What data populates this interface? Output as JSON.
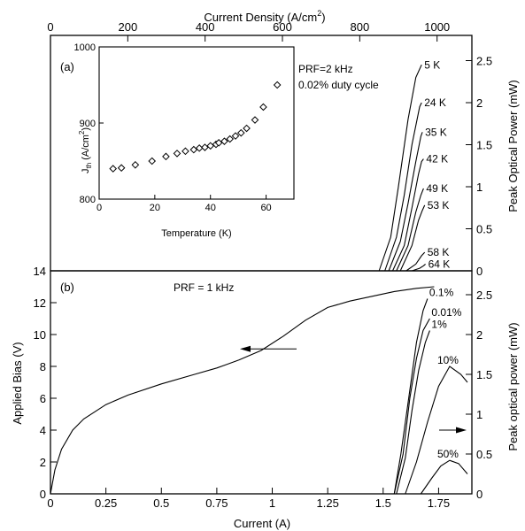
{
  "chart_data": [
    {
      "panel": "(a)",
      "type": "line",
      "xlabel_top": "Current Density (A/cm²)",
      "xlabel_top_parts": {
        "main": "Current Density (A/cm",
        "sup": "2",
        "close": ")"
      },
      "xlim_top": [
        0,
        1090
      ],
      "xticks_top": [
        0,
        200,
        400,
        600,
        800,
        1000
      ],
      "ylabel_right": "Peak Optical Power (mW)",
      "ylim_right": [
        0,
        2.8
      ],
      "yticks_right": [
        0,
        0.5,
        1,
        1.5,
        2,
        2.5
      ],
      "annotation": [
        "PRF=2 kHz",
        "0.02% duty cycle"
      ],
      "series": [
        {
          "name": "5 K",
          "x": [
            850,
            880,
            900,
            925,
            945,
            960
          ],
          "y": [
            0,
            0.4,
            1.0,
            1.8,
            2.3,
            2.45
          ]
        },
        {
          "name": "24 K",
          "x": [
            865,
            895,
            915,
            935,
            955,
            960
          ],
          "y": [
            0,
            0.4,
            0.9,
            1.5,
            1.95,
            2.0
          ]
        },
        {
          "name": "35 K",
          "x": [
            875,
            905,
            925,
            945,
            958,
            962
          ],
          "y": [
            0,
            0.35,
            0.8,
            1.3,
            1.6,
            1.65
          ]
        },
        {
          "name": "42 K",
          "x": [
            885,
            915,
            935,
            952,
            960,
            965
          ],
          "y": [
            0,
            0.3,
            0.75,
            1.15,
            1.3,
            1.33
          ]
        },
        {
          "name": "49 K",
          "x": [
            895,
            925,
            945,
            958,
            965
          ],
          "y": [
            0,
            0.3,
            0.7,
            0.9,
            0.98
          ]
        },
        {
          "name": "53 K",
          "x": [
            905,
            935,
            952,
            962,
            968
          ],
          "y": [
            0,
            0.3,
            0.6,
            0.72,
            0.78
          ]
        },
        {
          "name": "58 K",
          "x": [
            920,
            945,
            960,
            968
          ],
          "y": [
            0,
            0.08,
            0.18,
            0.22
          ]
        },
        {
          "name": "64 K",
          "x": [
            935,
            955,
            965,
            970
          ],
          "y": [
            0,
            0.03,
            0.06,
            0.08
          ]
        }
      ]
    },
    {
      "panel": "inset",
      "type": "scatter",
      "xlabel": "Temperature (K)",
      "ylabel": "J_th (A/cm²)",
      "ylabel_parts": {
        "main": "J",
        "sub": "th",
        "rest": " (A/cm",
        "sup": "2",
        "close": ")"
      },
      "xlim": [
        0,
        70
      ],
      "ylim": [
        800,
        1000
      ],
      "xticks": [
        0,
        20,
        40,
        60
      ],
      "yticks": [
        800,
        900,
        1000
      ],
      "x": [
        5,
        8,
        13,
        19,
        24,
        28,
        31,
        34,
        36,
        38,
        40,
        42,
        43,
        45,
        47,
        49,
        51,
        53,
        56,
        59,
        64
      ],
      "y": [
        840,
        841,
        845,
        850,
        856,
        860,
        863,
        865,
        867,
        868,
        870,
        872,
        874,
        876,
        879,
        883,
        887,
        893,
        904,
        921,
        950
      ]
    },
    {
      "panel": "(b)",
      "type": "line",
      "xlabel": "Current (A)",
      "xlim": [
        0,
        1.9
      ],
      "xticks": [
        0,
        0.25,
        0.5,
        0.75,
        1,
        1.25,
        1.5,
        1.75
      ],
      "xtick_labels": [
        "0",
        "0.25",
        "0.5",
        "0.75",
        "1",
        "1.25",
        "1.5",
        "1.75"
      ],
      "ylabel_left": "Applied Bias (V)",
      "ylim_left": [
        0,
        14
      ],
      "yticks_left": [
        0,
        2,
        4,
        6,
        8,
        10,
        12,
        14
      ],
      "ylabel_right": "Peak optical power (mW)",
      "ylim_right": [
        0,
        2.8
      ],
      "yticks_right": [
        0,
        0.5,
        1,
        1.5,
        2,
        2.5
      ],
      "annotation": "PRF = 1 kHz",
      "bias_series": {
        "x": [
          0,
          0.02,
          0.05,
          0.1,
          0.15,
          0.25,
          0.35,
          0.5,
          0.65,
          0.75,
          0.85,
          0.95,
          1.05,
          1.15,
          1.25,
          1.35,
          1.45,
          1.55,
          1.65,
          1.73
        ],
        "y": [
          0,
          1.5,
          2.8,
          4.0,
          4.7,
          5.6,
          6.2,
          6.9,
          7.5,
          7.9,
          8.4,
          9.0,
          9.9,
          10.9,
          11.7,
          12.1,
          12.4,
          12.7,
          12.9,
          13.0
        ]
      },
      "power_series": [
        {
          "name": "0.1%",
          "x": [
            1.55,
            1.58,
            1.62,
            1.65,
            1.68,
            1.7
          ],
          "y": [
            0,
            0.5,
            1.3,
            1.9,
            2.3,
            2.45
          ]
        },
        {
          "name": "0.01%",
          "x": [
            1.55,
            1.59,
            1.62,
            1.65,
            1.68,
            1.71
          ],
          "y": [
            0,
            0.5,
            1.2,
            1.7,
            2.05,
            2.2
          ]
        },
        {
          "name": "1%",
          "x": [
            1.56,
            1.6,
            1.63,
            1.66,
            1.69,
            1.71
          ],
          "y": [
            0,
            0.45,
            1.05,
            1.55,
            1.9,
            2.05
          ]
        },
        {
          "name": "10%",
          "x": [
            1.6,
            1.65,
            1.7,
            1.75,
            1.8,
            1.85,
            1.88
          ],
          "y": [
            0,
            0.4,
            0.9,
            1.35,
            1.6,
            1.5,
            1.4
          ]
        },
        {
          "name": "50%",
          "x": [
            1.67,
            1.72,
            1.76,
            1.8,
            1.84,
            1.88
          ],
          "y": [
            0,
            0.2,
            0.35,
            0.42,
            0.38,
            0.25
          ]
        }
      ]
    }
  ]
}
